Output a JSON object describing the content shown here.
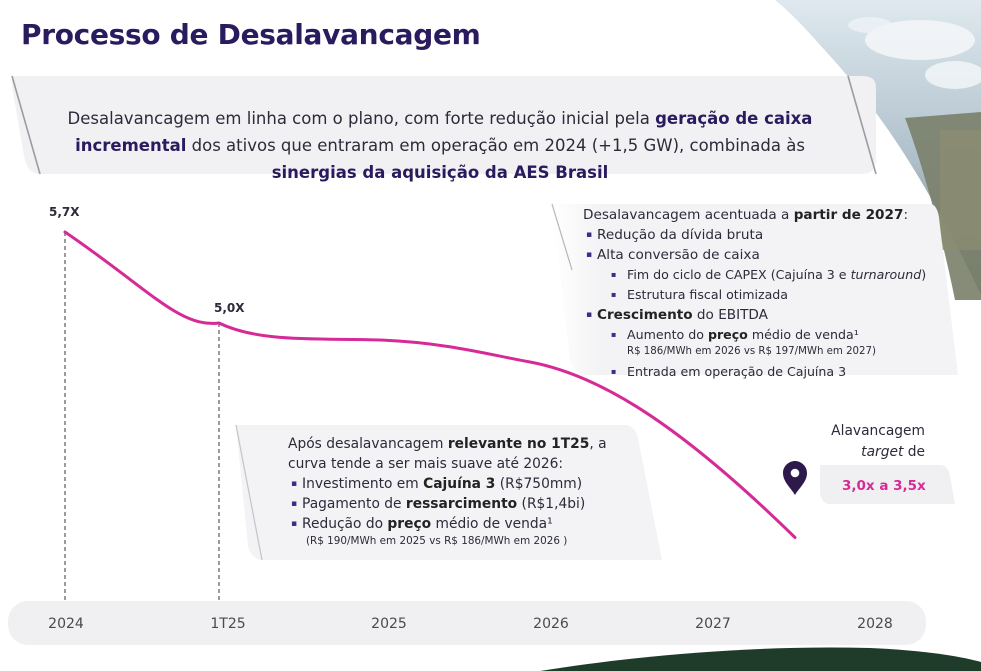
{
  "page_title": "Processo de Desalavancagem",
  "subtitle": {
    "p1": "Desalavancagem em linha com o plano, com forte redução inicial pela ",
    "b1": "geração de caixa incremental",
    "p2": " dos ativos que entraram em operação em 2024 (+1,5 GW), combinada às ",
    "b2": "sinergias da aquisição da AES Brasil"
  },
  "chart_data": {
    "type": "line",
    "points": [
      {
        "x": "2024",
        "y": 5.7,
        "label": "5,7X"
      },
      {
        "x": "1T25",
        "y": 5.0,
        "label": "5,0X"
      }
    ],
    "target_range": [
      3.0,
      3.5
    ],
    "x_ticks": [
      "2024",
      "1T25",
      "2025",
      "2026",
      "2027",
      "2028"
    ],
    "line_color": "#d62a97"
  },
  "right_box": {
    "heading_pre": "Desalavancagem acentuada a ",
    "heading_bold": "partir de 2027",
    "heading_post": ":",
    "item1": "Redução da dívida bruta",
    "item2": "Alta conversão de caixa",
    "item2_sub1_pre": "Fim do ciclo de CAPEX (Cajuína 3 e ",
    "item2_sub1_em": "turnaround",
    "item2_sub1_post": ")",
    "item2_sub2": "Estrutura fiscal otimizada",
    "item3_bold": "Crescimento",
    "item3_rest": " do EBITDA",
    "item3_sub1_pre": "Aumento do ",
    "item3_sub1_bold": "preço",
    "item3_sub1_post": " médio de venda¹",
    "item3_sub1_note": "R$ 186/MWh em 2026 vs R$ 197/MWh em 2027)",
    "item3_sub2": "Entrada em operação de Cajuína 3"
  },
  "mid_box": {
    "line1_pre": "Após desalavancagem ",
    "line1_bold": "relevante no 1T25",
    "line1_post": ", a",
    "line2": "curva tende a ser mais suave até 2026:",
    "item1_pre": "Investimento em ",
    "item1_bold": "Cajuína 3",
    "item1_post": " (R$750mm)",
    "item2_pre": "Pagamento de ",
    "item2_bold": "ressarcimento",
    "item2_post": " (R$1,4bi)",
    "item3_pre": "Redução do ",
    "item3_bold": "preço",
    "item3_post": " médio de venda¹",
    "item3_note": "(R$ 190/MWh em 2025 vs R$ 186/MWh em 2026 )"
  },
  "target": {
    "line1": "Alavancagem",
    "line2_em": "target",
    "line2_rest": " de",
    "range": "3,0x a 3,5x"
  },
  "icons": [
    "location-pin-icon"
  ],
  "colors": {
    "title": "#2a1a5e",
    "accent": "#d62a97",
    "pin": "#2d1a4a"
  }
}
